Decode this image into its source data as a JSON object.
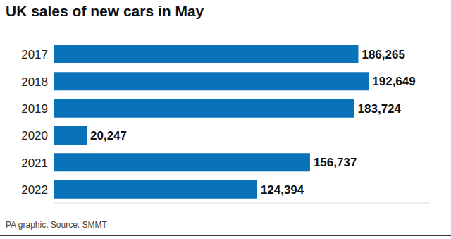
{
  "chart_data": {
    "type": "bar",
    "title": "UK sales of new cars in May",
    "subtitle": "PA graphic. Source: SMMT",
    "orientation": "horizontal",
    "categories": [
      "2017",
      "2018",
      "2019",
      "2020",
      "2021",
      "2022"
    ],
    "values": [
      186265,
      192649,
      183724,
      20247,
      156737,
      124394
    ],
    "value_labels": [
      "186,265",
      "192,649",
      "183,724",
      "20,247",
      "156,737",
      "124,394"
    ],
    "data_labels": true,
    "color": "#0a72b8",
    "xlim": [
      0,
      230000
    ],
    "tick_labels": "y",
    "grid": false
  }
}
